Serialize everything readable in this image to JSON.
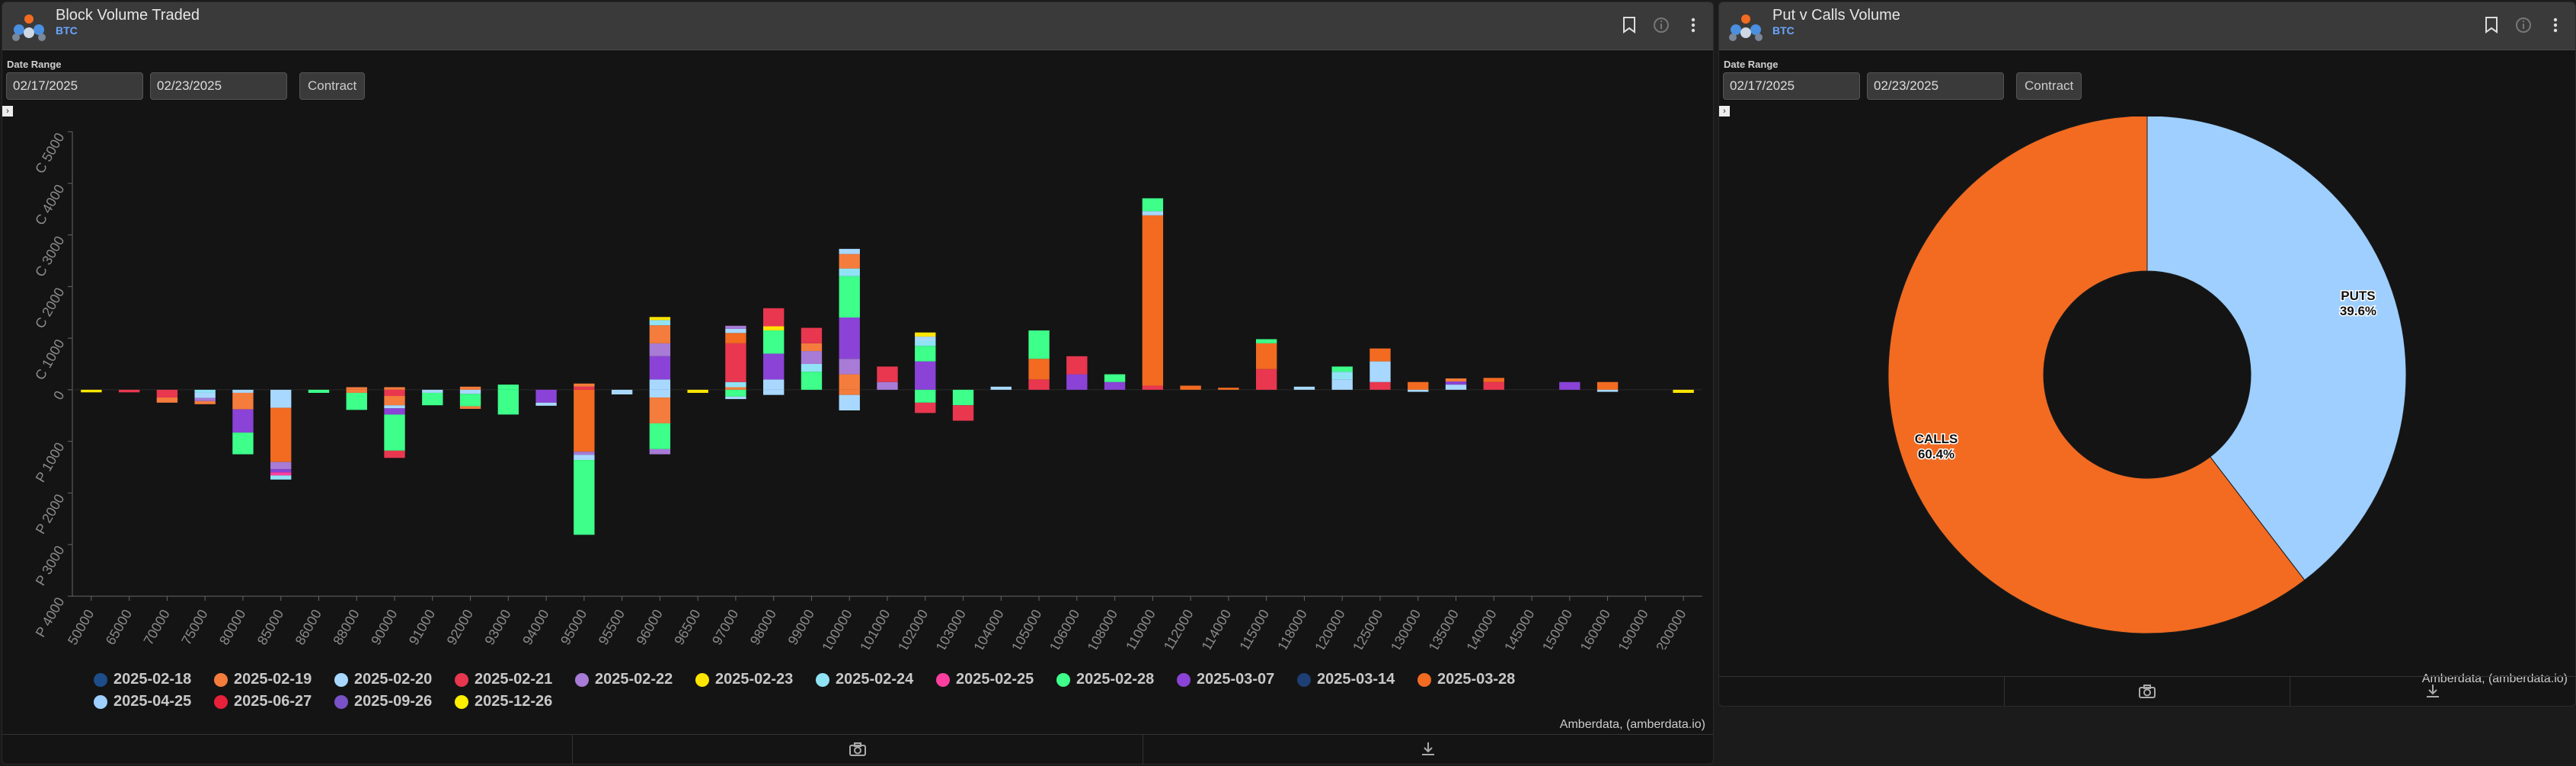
{
  "left_panel": {
    "title": "Block Volume Traded",
    "subtitle": "BTC",
    "date_range_label": "Date Range",
    "start_date": "02/17/2025",
    "end_date": "02/23/2025",
    "contract_label": "Contract",
    "credit": "Amberdata, (amberdata.io)",
    "icons": [
      "bookmark-icon",
      "info-icon",
      "more-vertical-icon",
      "camera-icon",
      "download-icon"
    ]
  },
  "right_panel": {
    "title": "Put v Calls Volume",
    "subtitle": "BTC",
    "date_range_label": "Date Range",
    "start_date": "02/17/2025",
    "end_date": "02/23/2025",
    "contract_label": "Contract",
    "credit": "Amberdata, (amberdata.io)",
    "icons": [
      "bookmark-icon",
      "info-icon",
      "more-vertical-icon",
      "camera-icon",
      "download-icon"
    ]
  },
  "chart_data": [
    {
      "type": "bar",
      "stacked": true,
      "y_ticks": [
        "P 4000",
        "P 3000",
        "P 2000",
        "P 1000",
        "0",
        "C 1000",
        "C 2000",
        "C 3000",
        "C 4000",
        "C 5000"
      ],
      "ylim": [
        -4000,
        5000
      ],
      "categories": [
        "50000",
        "65000",
        "70000",
        "75000",
        "80000",
        "85000",
        "86000",
        "88000",
        "90000",
        "91000",
        "92000",
        "93000",
        "94000",
        "95000",
        "95500",
        "96000",
        "96500",
        "97000",
        "98000",
        "99000",
        "100000",
        "101000",
        "102000",
        "103000",
        "104000",
        "105000",
        "106000",
        "108000",
        "110000",
        "112000",
        "114000",
        "115000",
        "118000",
        "120000",
        "125000",
        "130000",
        "135000",
        "140000",
        "145000",
        "150000",
        "160000",
        "190000",
        "200000"
      ],
      "legend": [
        {
          "name": "2025-02-18",
          "color": "#1d4e89"
        },
        {
          "name": "2025-02-19",
          "color": "#f47c3c"
        },
        {
          "name": "2025-02-20",
          "color": "#a8d8ff"
        },
        {
          "name": "2025-02-21",
          "color": "#e8374f"
        },
        {
          "name": "2025-02-22",
          "color": "#a77bd6"
        },
        {
          "name": "2025-02-23",
          "color": "#ffe600"
        },
        {
          "name": "2025-02-24",
          "color": "#8fe3f5"
        },
        {
          "name": "2025-02-25",
          "color": "#ff3fa0"
        },
        {
          "name": "2025-02-28",
          "color": "#3dff8a"
        },
        {
          "name": "2025-03-07",
          "color": "#8a43d6"
        },
        {
          "name": "2025-03-14",
          "color": "#1d3f73"
        },
        {
          "name": "2025-03-28",
          "color": "#f26b21"
        },
        {
          "name": "2025-04-25",
          "color": "#9ecfff"
        },
        {
          "name": "2025-06-27",
          "color": "#e8203a"
        },
        {
          "name": "2025-09-26",
          "color": "#7a52c7"
        },
        {
          "name": "2025-12-26",
          "color": "#ffee00"
        }
      ],
      "bars": [
        {
          "x": "50000",
          "call": [],
          "put": [
            [
              "2025-02-23",
              50
            ]
          ]
        },
        {
          "x": "65000",
          "call": [],
          "put": [
            [
              "2025-02-21",
              50
            ]
          ]
        },
        {
          "x": "70000",
          "call": [],
          "put": [
            [
              "2025-02-21",
              150
            ],
            [
              "2025-02-19",
              100
            ]
          ]
        },
        {
          "x": "75000",
          "call": [],
          "put": [
            [
              "2025-02-24",
              60
            ],
            [
              "2025-02-20",
              100
            ],
            [
              "2025-02-22",
              60
            ],
            [
              "2025-02-19",
              60
            ]
          ]
        },
        {
          "x": "80000",
          "call": [],
          "put": [
            [
              "2025-02-20",
              60
            ],
            [
              "2025-02-19",
              320
            ],
            [
              "2025-03-07",
              450
            ],
            [
              "2025-02-28",
              420
            ]
          ]
        },
        {
          "x": "85000",
          "call": [],
          "put": [
            [
              "2025-02-20",
              350
            ],
            [
              "2025-03-28",
              1050
            ],
            [
              "2025-02-22",
              140
            ],
            [
              "2025-03-07",
              60
            ],
            [
              "2025-02-25",
              60
            ],
            [
              "2025-02-24",
              80
            ]
          ]
        },
        {
          "x": "86000",
          "call": [],
          "put": [
            [
              "2025-02-28",
              60
            ]
          ]
        },
        {
          "x": "88000",
          "call": [
            [
              "2025-02-19",
              50
            ]
          ],
          "put": [
            [
              "2025-02-19",
              60
            ],
            [
              "2025-02-28",
              330
            ]
          ]
        },
        {
          "x": "90000",
          "call": [
            [
              "2025-02-19",
              50
            ]
          ],
          "put": [
            [
              "2025-02-21",
              120
            ],
            [
              "2025-02-19",
              180
            ],
            [
              "2025-02-20",
              60
            ],
            [
              "2025-03-07",
              120
            ],
            [
              "2025-02-28",
              700
            ],
            [
              "2025-02-21",
              140
            ]
          ]
        },
        {
          "x": "91000",
          "call": [],
          "put": [
            [
              "2025-02-20",
              60
            ],
            [
              "2025-02-28",
              240
            ]
          ]
        },
        {
          "x": "92000",
          "call": [
            [
              "2025-02-19",
              60
            ]
          ],
          "put": [
            [
              "2025-02-20",
              80
            ],
            [
              "2025-02-28",
              240
            ],
            [
              "2025-02-19",
              50
            ]
          ]
        },
        {
          "x": "93000",
          "call": [
            [
              "2025-02-28",
              100
            ]
          ],
          "put": [
            [
              "2025-02-28",
              480
            ]
          ]
        },
        {
          "x": "94000",
          "call": [],
          "put": [
            [
              "2025-03-07",
              250
            ],
            [
              "2025-02-20",
              60
            ]
          ]
        },
        {
          "x": "95000",
          "call": [
            [
              "2025-02-21",
              60
            ],
            [
              "2025-02-19",
              60
            ]
          ],
          "put": [
            [
              "2025-03-28",
              1200
            ],
            [
              "2025-02-22",
              60
            ],
            [
              "2025-02-20",
              100
            ],
            [
              "2025-02-28",
              1450
            ]
          ]
        },
        {
          "x": "95500",
          "call": [],
          "put": [
            [
              "2025-02-20",
              90
            ]
          ]
        },
        {
          "x": "96000",
          "call": [
            [
              "2025-02-20",
              200
            ],
            [
              "2025-03-07",
              450
            ],
            [
              "2025-02-22",
              250
            ],
            [
              "2025-02-19",
              350
            ],
            [
              "2025-02-24",
              100
            ],
            [
              "2025-02-23",
              60
            ]
          ],
          "put": [
            [
              "2025-02-20",
              150
            ],
            [
              "2025-02-19",
              500
            ],
            [
              "2025-02-28",
              500
            ],
            [
              "2025-02-22",
              100
            ]
          ]
        },
        {
          "x": "96500",
          "call": [],
          "put": [
            [
              "2025-02-23",
              60
            ]
          ]
        },
        {
          "x": "97000",
          "call": [
            [
              "2025-02-19",
              50
            ],
            [
              "2025-02-24",
              100
            ],
            [
              "2025-02-21",
              750
            ],
            [
              "2025-03-28",
              200
            ],
            [
              "2025-02-20",
              80
            ],
            [
              "2025-02-22",
              60
            ]
          ],
          "put": [
            [
              "2025-02-28",
              130
            ],
            [
              "2025-02-20",
              50
            ]
          ]
        },
        {
          "x": "98000",
          "call": [
            [
              "2025-02-20",
              200
            ],
            [
              "2025-03-07",
              500
            ],
            [
              "2025-02-28",
              450
            ],
            [
              "2025-02-23",
              80
            ],
            [
              "2025-02-21",
              350
            ]
          ],
          "put": [
            [
              "2025-02-20",
              100
            ]
          ]
        },
        {
          "x": "99000",
          "call": [
            [
              "2025-02-28",
              350
            ],
            [
              "2025-02-24",
              150
            ],
            [
              "2025-02-22",
              250
            ],
            [
              "2025-02-19",
              150
            ],
            [
              "2025-02-21",
              300
            ]
          ],
          "put": []
        },
        {
          "x": "100000",
          "call": [
            [
              "2025-02-19",
              300
            ],
            [
              "2025-02-22",
              300
            ],
            [
              "2025-03-07",
              800
            ],
            [
              "2025-02-28",
              800
            ],
            [
              "2025-02-24",
              150
            ],
            [
              "2025-02-19",
              280
            ],
            [
              "2025-02-20",
              100
            ]
          ],
          "put": [
            [
              "2025-02-19",
              100
            ],
            [
              "2025-02-20",
              300
            ]
          ]
        },
        {
          "x": "101000",
          "call": [
            [
              "2025-02-22",
              150
            ],
            [
              "2025-02-21",
              300
            ]
          ],
          "put": []
        },
        {
          "x": "102000",
          "call": [
            [
              "2025-03-07",
              550
            ],
            [
              "2025-02-28",
              300
            ],
            [
              "2025-02-24",
              100
            ],
            [
              "2025-02-20",
              80
            ],
            [
              "2025-02-23",
              80
            ]
          ],
          "put": [
            [
              "2025-02-28",
              250
            ],
            [
              "2025-02-21",
              200
            ]
          ]
        },
        {
          "x": "103000",
          "call": [],
          "put": [
            [
              "2025-02-28",
              300
            ],
            [
              "2025-02-21",
              300
            ]
          ]
        },
        {
          "x": "104000",
          "call": [
            [
              "2025-02-20",
              60
            ]
          ],
          "put": []
        },
        {
          "x": "105000",
          "call": [
            [
              "2025-02-21",
              200
            ],
            [
              "2025-03-28",
              400
            ],
            [
              "2025-02-28",
              550
            ]
          ],
          "put": []
        },
        {
          "x": "106000",
          "call": [
            [
              "2025-03-07",
              300
            ],
            [
              "2025-02-21",
              350
            ]
          ],
          "put": []
        },
        {
          "x": "108000",
          "call": [
            [
              "2025-03-07",
              150
            ],
            [
              "2025-02-28",
              150
            ]
          ],
          "put": []
        },
        {
          "x": "110000",
          "call": [
            [
              "2025-02-21",
              80
            ],
            [
              "2025-03-28",
              3300
            ],
            [
              "2025-02-20",
              80
            ],
            [
              "2025-02-28",
              250
            ]
          ],
          "put": []
        },
        {
          "x": "112000",
          "call": [
            [
              "2025-03-28",
              80
            ]
          ],
          "put": []
        },
        {
          "x": "114000",
          "call": [
            [
              "2025-03-28",
              40
            ]
          ],
          "put": []
        },
        {
          "x": "115000",
          "call": [
            [
              "2025-02-21",
              400
            ],
            [
              "2025-03-28",
              500
            ],
            [
              "2025-02-28",
              80
            ]
          ],
          "put": []
        },
        {
          "x": "118000",
          "call": [
            [
              "2025-02-20",
              60
            ]
          ],
          "put": []
        },
        {
          "x": "120000",
          "call": [
            [
              "2025-02-20",
              200
            ],
            [
              "2025-02-24",
              150
            ],
            [
              "2025-02-28",
              100
            ]
          ],
          "put": []
        },
        {
          "x": "125000",
          "call": [
            [
              "2025-02-21",
              150
            ],
            [
              "2025-02-20",
              400
            ],
            [
              "2025-03-28",
              250
            ]
          ],
          "put": []
        },
        {
          "x": "130000",
          "call": [
            [
              "2025-03-28",
              150
            ]
          ],
          "put": [
            [
              "2025-02-20",
              40
            ]
          ]
        },
        {
          "x": "135000",
          "call": [
            [
              "2025-02-20",
              100
            ],
            [
              "2025-03-07",
              60
            ],
            [
              "2025-02-19",
              60
            ]
          ],
          "put": []
        },
        {
          "x": "140000",
          "call": [
            [
              "2025-02-21",
              150
            ],
            [
              "2025-03-28",
              80
            ]
          ],
          "put": []
        },
        {
          "x": "150000",
          "call": [
            [
              "2025-03-07",
              150
            ]
          ],
          "put": []
        },
        {
          "x": "160000",
          "call": [
            [
              "2025-03-28",
              150
            ]
          ],
          "put": [
            [
              "2025-02-20",
              40
            ]
          ]
        },
        {
          "x": "200000",
          "call": [],
          "put": [
            [
              "2025-02-23",
              60
            ]
          ]
        }
      ]
    },
    {
      "type": "pie",
      "donut": true,
      "slices": [
        {
          "label": "PUTS",
          "value": 39.6,
          "display": "39.6%",
          "color": "#9ecfff"
        },
        {
          "label": "CALLS",
          "value": 60.4,
          "display": "60.4%",
          "color": "#f26b21"
        }
      ]
    }
  ]
}
